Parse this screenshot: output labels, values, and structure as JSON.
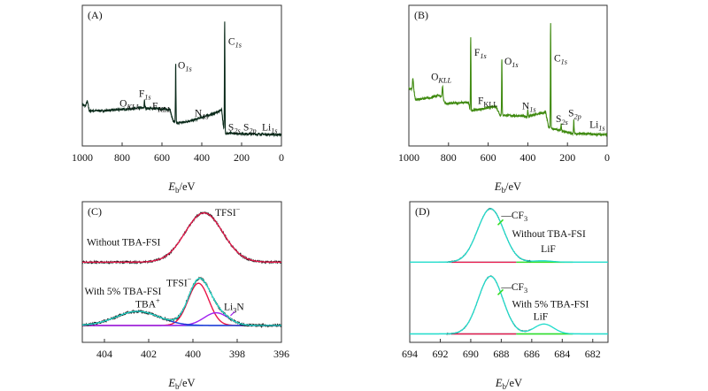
{
  "chart_data": [
    {
      "panel": "(A)",
      "type": "line",
      "xlabel": {
        "main": "E",
        "sub": "b",
        "rest": "/eV"
      },
      "xlim": [
        1000,
        0
      ],
      "ylim": [
        0,
        100
      ],
      "xticks": [
        1000,
        800,
        600,
        400,
        200,
        0
      ],
      "grid": false,
      "line_color": "#0a2a1a",
      "baseline": [
        [
          1000,
          30
        ],
        [
          985,
          28
        ],
        [
          975,
          32
        ],
        [
          965,
          25
        ],
        [
          900,
          25
        ],
        [
          700,
          27
        ],
        [
          560,
          26
        ],
        [
          545,
          18
        ],
        [
          530,
          16
        ],
        [
          450,
          18
        ],
        [
          320,
          24
        ],
        [
          300,
          26
        ],
        [
          290,
          12
        ],
        [
          280,
          9
        ],
        [
          0,
          8
        ]
      ],
      "peaks": [
        {
          "center": 688,
          "height": 6,
          "fwhm": 3
        },
        {
          "center": 531,
          "height": 44,
          "fwhm": 3
        },
        {
          "center": 285,
          "height": 80,
          "fwhm": 3
        }
      ],
      "annotations": [
        {
          "main": "O",
          "sub": "1s",
          "ev": 520,
          "y": 55
        },
        {
          "main": "C",
          "sub": "1s",
          "ev": 267,
          "y": 72
        },
        {
          "main": "F",
          "sub": "1s",
          "ev": 716,
          "y": 35
        },
        {
          "main": "O",
          "sub": "KLL",
          "ev": 813,
          "y": 28
        },
        {
          "main": "F",
          "sub": "KLL",
          "ev": 649,
          "y": 26
        },
        {
          "main": "N",
          "sub": "1s",
          "ev": 436,
          "y": 21
        },
        {
          "main": "S",
          "sub": "2s",
          "ev": 267,
          "y": 11
        },
        {
          "main": "S",
          "sub": "2p",
          "ev": 191,
          "y": 11
        },
        {
          "main": "Li",
          "sub": "1s",
          "ev": 98,
          "y": 11
        }
      ]
    },
    {
      "panel": "(B)",
      "type": "line",
      "xlabel": {
        "main": "E",
        "sub": "b",
        "rest": "/eV"
      },
      "xlim": [
        1000,
        0
      ],
      "ylim": [
        0,
        100
      ],
      "xticks": [
        1000,
        800,
        600,
        400,
        200,
        0
      ],
      "grid": false,
      "line_color": "#3f8a10",
      "baseline": [
        [
          1000,
          41
        ],
        [
          985,
          40
        ],
        [
          978,
          44
        ],
        [
          968,
          33
        ],
        [
          900,
          34
        ],
        [
          850,
          36
        ],
        [
          835,
          35
        ],
        [
          815,
          30
        ],
        [
          700,
          31
        ],
        [
          690,
          25
        ],
        [
          560,
          28
        ],
        [
          540,
          22
        ],
        [
          400,
          21
        ],
        [
          310,
          24
        ],
        [
          295,
          13
        ],
        [
          180,
          9
        ],
        [
          0,
          8
        ]
      ],
      "peaks": [
        {
          "center": 980,
          "height": 5,
          "fwhm": 4
        },
        {
          "center": 830,
          "height": 9,
          "fwhm": 5
        },
        {
          "center": 688,
          "height": 54,
          "fwhm": 3
        },
        {
          "center": 531,
          "height": 42,
          "fwhm": 3
        },
        {
          "center": 400,
          "height": 5,
          "fwhm": 3
        },
        {
          "center": 285,
          "height": 77,
          "fwhm": 3
        },
        {
          "center": 232,
          "height": 5,
          "fwhm": 3
        },
        {
          "center": 168,
          "height": 10,
          "fwhm": 3
        }
      ],
      "annotations": [
        {
          "main": "F",
          "sub": "1s",
          "ev": 670,
          "y": 64
        },
        {
          "main": "O",
          "sub": "1s",
          "ev": 518,
          "y": 58
        },
        {
          "main": "C",
          "sub": "1s",
          "ev": 268,
          "y": 60
        },
        {
          "main": "O",
          "sub": "KLL",
          "ev": 888,
          "y": 47
        },
        {
          "main": "F",
          "sub": "KLL",
          "ev": 652,
          "y": 30,
          "upright": true
        },
        {
          "main": "N",
          "sub": "1s",
          "ev": 429,
          "y": 26
        },
        {
          "main": "S",
          "sub": "2s",
          "ev": 259,
          "y": 17
        },
        {
          "main": "S",
          "sub": "2p",
          "ev": 196,
          "y": 21
        },
        {
          "main": "Li",
          "sub": "1s",
          "ev": 89,
          "y": 13
        }
      ]
    },
    {
      "panel": "(C)",
      "type": "line",
      "xlabel": {
        "main": "E",
        "sub": "b",
        "rest": "/eV"
      },
      "xlim": [
        405,
        396
      ],
      "ylim": [
        0,
        100
      ],
      "xticks": [
        404,
        402,
        400,
        398,
        396
      ],
      "grid": false,
      "spectra": [
        {
          "name": "Without TBA-FSI",
          "baseline": 57,
          "components": [
            {
              "label": "TFSI⁻",
              "center": 399.5,
              "height": 35,
              "fwhm": 2.0,
              "color": "#e8174a"
            }
          ],
          "envelope_color": "#e8174a",
          "data_color": "#111"
        },
        {
          "name": "With 5% TBA-FSI",
          "baseline": 12,
          "components": [
            {
              "label": "TFSI⁻",
              "center": 399.75,
              "height": 30,
              "fwhm": 1.1,
              "color": "#e8174a"
            },
            {
              "label": "Li₃N",
              "center": 398.95,
              "height": 9,
              "fwhm": 1.3,
              "color": "#a020f0"
            },
            {
              "label": "TBA⁺",
              "center": 402.5,
              "height": 10,
              "fwhm": 2.3,
              "color": "#1a3cd8"
            }
          ],
          "envelope_color": "#22dccc",
          "data_color": "#111"
        }
      ],
      "annotations": [
        {
          "main": "TFSI",
          "sup": "−",
          "ev": 399,
          "y": 90
        },
        {
          "main": "Without TBA-FSI",
          "ev": 404.8,
          "y": 69
        },
        {
          "main": "With 5% TBA-FSI",
          "ev": 404.9,
          "y": 34
        },
        {
          "main": "TBA",
          "sup": "+",
          "ev": 402.6,
          "y": 25
        },
        {
          "main": "TFSI",
          "sup": "−",
          "ev": 401.2,
          "y": 40
        },
        {
          "main": "Li",
          "sub": "3",
          "rest": "N",
          "ev": 398.6,
          "y": 23
        }
      ]
    },
    {
      "panel": "(D)",
      "type": "line",
      "xlabel": {
        "main": "E",
        "sub": "b",
        "rest": "/eV"
      },
      "xlim": [
        694,
        681
      ],
      "ylim": [
        0,
        100
      ],
      "xticks": [
        694,
        692,
        690,
        688,
        686,
        684,
        682
      ],
      "grid": false,
      "spectra": [
        {
          "name": "Without TBA-FSI",
          "baseline": 57,
          "components": [
            {
              "label": "CF₃",
              "center": 688.7,
              "height": 38,
              "fwhm": 2.0,
              "color": "#e8174a",
              "range": [
                691.3,
                687
              ]
            },
            {
              "label": "LiF",
              "center": 685.3,
              "height": 1,
              "fwhm": 1.5,
              "color": "#33dd22",
              "range": [
                687,
                683.3
              ]
            }
          ],
          "envelope_color": "#22dccc",
          "data_color": "#111"
        },
        {
          "name": "With 5% TBA-FSI",
          "baseline": 6,
          "components": [
            {
              "label": "CF₃",
              "center": 688.7,
              "height": 41,
              "fwhm": 1.9,
              "color": "#e8174a",
              "range": [
                691.3,
                687
              ]
            },
            {
              "label": "LiF",
              "center": 685.2,
              "height": 7,
              "fwhm": 1.5,
              "color": "#33dd22",
              "range": [
                687,
                683.3
              ]
            }
          ],
          "envelope_color": "#22dccc",
          "data_color": "#111"
        }
      ],
      "annotations": [
        {
          "main": "—CF",
          "sub": "3",
          "ev": 688,
          "y": 88,
          "upright": true
        },
        {
          "main": "Without TBA-FSI",
          "ev": 687.3,
          "y": 75
        },
        {
          "main": "LiF",
          "ev": 685.4,
          "y": 64
        },
        {
          "main": "—CF",
          "sub": "3",
          "ev": 688,
          "y": 37,
          "upright": true
        },
        {
          "main": "With 5% TBA-FSI",
          "ev": 687.3,
          "y": 25
        },
        {
          "main": "LiF",
          "ev": 685.9,
          "y": 16
        }
      ]
    }
  ]
}
